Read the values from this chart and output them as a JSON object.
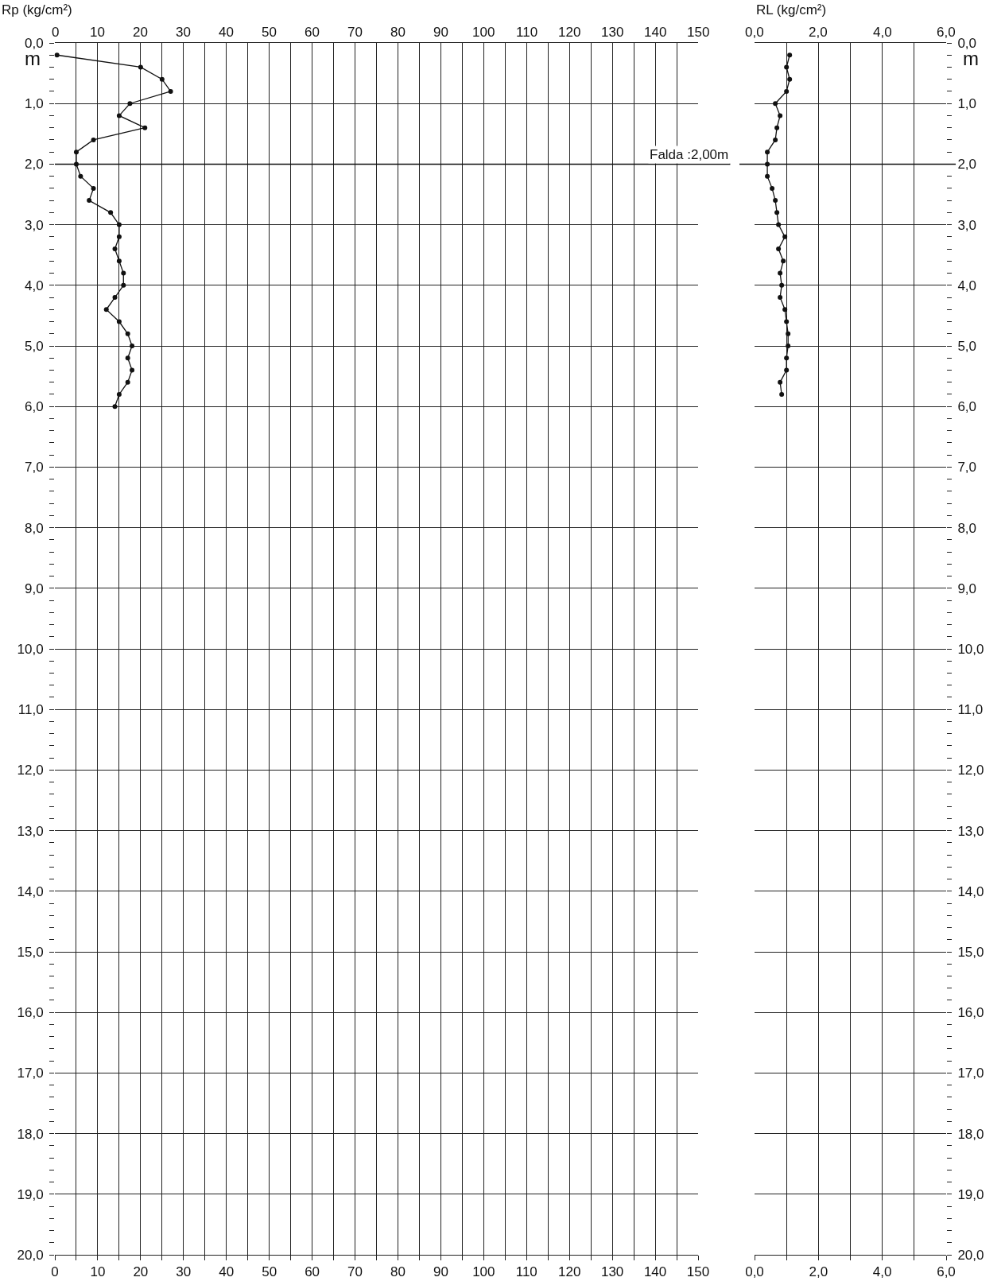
{
  "chart_data": [
    {
      "type": "line",
      "x2label": "Rp (kg/cm²)",
      "ylabel": "m",
      "marker": "circle",
      "line_style": "solid",
      "grid": true,
      "series": [
        {
          "color": "#111111",
          "x": [
            0.5,
            20,
            25,
            27,
            17.5,
            15,
            21,
            9,
            5,
            5,
            6,
            9,
            8,
            13,
            15,
            15,
            14,
            15,
            16,
            16,
            14,
            12,
            15,
            17,
            18,
            17,
            18,
            17,
            15,
            14
          ],
          "values": [
            0.2,
            0.4,
            0.6,
            0.8,
            1.0,
            1.2,
            1.4,
            1.6,
            1.8,
            2.0,
            2.2,
            2.4,
            2.6,
            2.8,
            3.0,
            3.2,
            3.4,
            3.6,
            3.8,
            4.0,
            4.2,
            4.4,
            4.6,
            4.8,
            5.0,
            5.2,
            5.4,
            5.6,
            5.8,
            6.0
          ]
        }
      ],
      "xlim": [
        0,
        150
      ],
      "x2lim": [
        0,
        150
      ],
      "xticks": [
        0,
        {
          "value": 5,
          "label": null
        },
        10,
        {
          "value": 15,
          "label": null
        },
        20,
        {
          "value": 25,
          "label": null
        },
        30,
        {
          "value": 35,
          "label": null
        },
        40,
        {
          "value": 45,
          "label": null
        },
        50,
        {
          "value": 55,
          "label": null
        },
        60,
        {
          "value": 65,
          "label": null
        },
        70,
        {
          "value": 75,
          "label": null
        },
        80,
        {
          "value": 85,
          "label": null
        },
        90,
        {
          "value": 95,
          "label": null
        },
        100,
        {
          "value": 105,
          "label": null
        },
        110,
        {
          "value": 115,
          "label": null
        },
        120,
        {
          "value": 125,
          "label": null
        },
        130,
        {
          "value": 135,
          "label": null
        },
        140,
        {
          "value": 145,
          "label": null
        },
        150
      ],
      "x2ticks": [
        0,
        10,
        20,
        30,
        40,
        50,
        60,
        70,
        80,
        90,
        100,
        110,
        120,
        130,
        140,
        150
      ],
      "ylim": [
        20,
        0
      ],
      "yticks": [
        {
          "value": 0,
          "label": "0,0"
        },
        {
          "value": 0.2,
          "label": null
        },
        {
          "value": 0.4,
          "label": null
        },
        {
          "value": 0.6,
          "label": null
        },
        {
          "value": 0.8,
          "label": null
        },
        {
          "value": 1,
          "label": "1,0"
        },
        {
          "value": 1.2,
          "label": null
        },
        {
          "value": 1.4,
          "label": null
        },
        {
          "value": 1.6,
          "label": null
        },
        {
          "value": 1.8,
          "label": null
        },
        {
          "value": 2,
          "label": "2,0"
        },
        {
          "value": 2.2,
          "label": null
        },
        {
          "value": 2.4,
          "label": null
        },
        {
          "value": 2.6,
          "label": null
        },
        {
          "value": 2.8,
          "label": null
        },
        {
          "value": 3,
          "label": "3,0"
        },
        {
          "value": 3.2,
          "label": null
        },
        {
          "value": 3.4,
          "label": null
        },
        {
          "value": 3.6,
          "label": null
        },
        {
          "value": 3.8,
          "label": null
        },
        {
          "value": 4,
          "label": "4,0"
        },
        {
          "value": 4.2,
          "label": null
        },
        {
          "value": 4.4,
          "label": null
        },
        {
          "value": 4.6,
          "label": null
        },
        {
          "value": 4.8,
          "label": null
        },
        {
          "value": 5,
          "label": "5,0"
        },
        {
          "value": 5.2,
          "label": null
        },
        {
          "value": 5.4,
          "label": null
        },
        {
          "value": 5.6,
          "label": null
        },
        {
          "value": 5.8,
          "label": null
        },
        {
          "value": 6,
          "label": "6,0"
        },
        {
          "value": 6.2,
          "label": null
        },
        {
          "value": 6.4,
          "label": null
        },
        {
          "value": 6.6,
          "label": null
        },
        {
          "value": 6.8,
          "label": null
        },
        {
          "value": 7,
          "label": "7,0"
        },
        {
          "value": 7.2,
          "label": null
        },
        {
          "value": 7.4,
          "label": null
        },
        {
          "value": 7.6,
          "label": null
        },
        {
          "value": 7.8,
          "label": null
        },
        {
          "value": 8,
          "label": "8,0"
        },
        {
          "value": 8.2,
          "label": null
        },
        {
          "value": 8.4,
          "label": null
        },
        {
          "value": 8.6,
          "label": null
        },
        {
          "value": 8.8,
          "label": null
        },
        {
          "value": 9,
          "label": "9,0"
        },
        {
          "value": 9.2,
          "label": null
        },
        {
          "value": 9.4,
          "label": null
        },
        {
          "value": 9.6,
          "label": null
        },
        {
          "value": 9.8,
          "label": null
        },
        {
          "value": 10,
          "label": "10,0"
        },
        {
          "value": 10.2,
          "label": null
        },
        {
          "value": 10.4,
          "label": null
        },
        {
          "value": 10.6,
          "label": null
        },
        {
          "value": 10.8,
          "label": null
        },
        {
          "value": 11,
          "label": "11,0"
        },
        {
          "value": 11.2,
          "label": null
        },
        {
          "value": 11.4,
          "label": null
        },
        {
          "value": 11.6,
          "label": null
        },
        {
          "value": 11.8,
          "label": null
        },
        {
          "value": 12,
          "label": "12,0"
        },
        {
          "value": 12.2,
          "label": null
        },
        {
          "value": 12.4,
          "label": null
        },
        {
          "value": 12.6,
          "label": null
        },
        {
          "value": 12.8,
          "label": null
        },
        {
          "value": 13,
          "label": "13,0"
        },
        {
          "value": 13.2,
          "label": null
        },
        {
          "value": 13.4,
          "label": null
        },
        {
          "value": 13.6,
          "label": null
        },
        {
          "value": 13.8,
          "label": null
        },
        {
          "value": 14,
          "label": "14,0"
        },
        {
          "value": 14.2,
          "label": null
        },
        {
          "value": 14.4,
          "label": null
        },
        {
          "value": 14.6,
          "label": null
        },
        {
          "value": 14.8,
          "label": null
        },
        {
          "value": 15,
          "label": "15,0"
        },
        {
          "value": 15.2,
          "label": null
        },
        {
          "value": 15.4,
          "label": null
        },
        {
          "value": 15.6,
          "label": null
        },
        {
          "value": 15.8,
          "label": null
        },
        {
          "value": 16,
          "label": "16,0"
        },
        {
          "value": 16.2,
          "label": null
        },
        {
          "value": 16.4,
          "label": null
        },
        {
          "value": 16.6,
          "label": null
        },
        {
          "value": 16.8,
          "label": null
        },
        {
          "value": 17,
          "label": "17,0"
        },
        {
          "value": 17.2,
          "label": null
        },
        {
          "value": 17.4,
          "label": null
        },
        {
          "value": 17.6,
          "label": null
        },
        {
          "value": 17.8,
          "label": null
        },
        {
          "value": 18,
          "label": "18,0"
        },
        {
          "value": 18.2,
          "label": null
        },
        {
          "value": 18.4,
          "label": null
        },
        {
          "value": 18.6,
          "label": null
        },
        {
          "value": 18.8,
          "label": null
        },
        {
          "value": 19,
          "label": "19,0"
        },
        {
          "value": 19.2,
          "label": null
        },
        {
          "value": 19.4,
          "label": null
        },
        {
          "value": 19.6,
          "label": null
        },
        {
          "value": 19.8,
          "label": null
        },
        {
          "value": 20,
          "label": "20,0"
        }
      ],
      "ref_lines": [
        {
          "axis": "y",
          "value": 2,
          "label": "Falda :2,00m"
        }
      ]
    },
    {
      "type": "line",
      "x2label": "RL (kg/cm²)",
      "ylabel": "m",
      "marker": "circle",
      "line_style": "solid",
      "grid": true,
      "series": [
        {
          "color": "#111111",
          "x": [
            1.1,
            1.0,
            1.1,
            1.0,
            0.65,
            0.8,
            0.7,
            0.65,
            0.4,
            0.4,
            0.4,
            0.55,
            0.65,
            0.7,
            0.75,
            0.95,
            0.75,
            0.9,
            0.8,
            0.85,
            0.8,
            0.95,
            1.0,
            1.05,
            1.05,
            1.0,
            1.0,
            0.8,
            0.85
          ],
          "values": [
            0.2,
            0.4,
            0.6,
            0.8,
            1.0,
            1.2,
            1.4,
            1.6,
            1.8,
            2.0,
            2.2,
            2.4,
            2.6,
            2.8,
            3.0,
            3.2,
            3.4,
            3.6,
            3.8,
            4.0,
            4.2,
            4.4,
            4.6,
            4.8,
            5.0,
            5.2,
            5.4,
            5.6,
            5.8
          ]
        }
      ],
      "xlim": [
        0,
        6
      ],
      "x2lim": [
        0,
        6
      ],
      "xticks": [
        {
          "value": 0,
          "label": "0,0"
        },
        {
          "value": 1,
          "label": null
        },
        {
          "value": 2,
          "label": "2,0"
        },
        {
          "value": 3,
          "label": null
        },
        {
          "value": 4,
          "label": "4,0"
        },
        {
          "value": 5,
          "label": null
        },
        {
          "value": 6,
          "label": "6,0"
        }
      ],
      "x2ticks": [
        {
          "value": 0,
          "label": "0,0"
        },
        {
          "value": 2,
          "label": "2,0"
        },
        {
          "value": 4,
          "label": "4,0"
        },
        {
          "value": 6,
          "label": "6,0"
        }
      ],
      "ylim": [
        20,
        0
      ],
      "yticks": [
        {
          "value": 0,
          "label": "0,0"
        },
        {
          "value": 0.2,
          "label": null
        },
        {
          "value": 0.4,
          "label": null
        },
        {
          "value": 0.6,
          "label": null
        },
        {
          "value": 0.8,
          "label": null
        },
        {
          "value": 1,
          "label": "1,0"
        },
        {
          "value": 1.2,
          "label": null
        },
        {
          "value": 1.4,
          "label": null
        },
        {
          "value": 1.6,
          "label": null
        },
        {
          "value": 1.8,
          "label": null
        },
        {
          "value": 2,
          "label": "2,0"
        },
        {
          "value": 2.2,
          "label": null
        },
        {
          "value": 2.4,
          "label": null
        },
        {
          "value": 2.6,
          "label": null
        },
        {
          "value": 2.8,
          "label": null
        },
        {
          "value": 3,
          "label": "3,0"
        },
        {
          "value": 3.2,
          "label": null
        },
        {
          "value": 3.4,
          "label": null
        },
        {
          "value": 3.6,
          "label": null
        },
        {
          "value": 3.8,
          "label": null
        },
        {
          "value": 4,
          "label": "4,0"
        },
        {
          "value": 4.2,
          "label": null
        },
        {
          "value": 4.4,
          "label": null
        },
        {
          "value": 4.6,
          "label": null
        },
        {
          "value": 4.8,
          "label": null
        },
        {
          "value": 5,
          "label": "5,0"
        },
        {
          "value": 5.2,
          "label": null
        },
        {
          "value": 5.4,
          "label": null
        },
        {
          "value": 5.6,
          "label": null
        },
        {
          "value": 5.8,
          "label": null
        },
        {
          "value": 6,
          "label": "6,0"
        },
        {
          "value": 6.2,
          "label": null
        },
        {
          "value": 6.4,
          "label": null
        },
        {
          "value": 6.6,
          "label": null
        },
        {
          "value": 6.8,
          "label": null
        },
        {
          "value": 7,
          "label": "7,0"
        },
        {
          "value": 7.2,
          "label": null
        },
        {
          "value": 7.4,
          "label": null
        },
        {
          "value": 7.6,
          "label": null
        },
        {
          "value": 7.8,
          "label": null
        },
        {
          "value": 8,
          "label": "8,0"
        },
        {
          "value": 8.2,
          "label": null
        },
        {
          "value": 8.4,
          "label": null
        },
        {
          "value": 8.6,
          "label": null
        },
        {
          "value": 8.8,
          "label": null
        },
        {
          "value": 9,
          "label": "9,0"
        },
        {
          "value": 9.2,
          "label": null
        },
        {
          "value": 9.4,
          "label": null
        },
        {
          "value": 9.6,
          "label": null
        },
        {
          "value": 9.8,
          "label": null
        },
        {
          "value": 10,
          "label": "10,0"
        },
        {
          "value": 10.2,
          "label": null
        },
        {
          "value": 10.4,
          "label": null
        },
        {
          "value": 10.6,
          "label": null
        },
        {
          "value": 10.8,
          "label": null
        },
        {
          "value": 11,
          "label": "11,0"
        },
        {
          "value": 11.2,
          "label": null
        },
        {
          "value": 11.4,
          "label": null
        },
        {
          "value": 11.6,
          "label": null
        },
        {
          "value": 11.8,
          "label": null
        },
        {
          "value": 12,
          "label": "12,0"
        },
        {
          "value": 12.2,
          "label": null
        },
        {
          "value": 12.4,
          "label": null
        },
        {
          "value": 12.6,
          "label": null
        },
        {
          "value": 12.8,
          "label": null
        },
        {
          "value": 13,
          "label": "13,0"
        },
        {
          "value": 13.2,
          "label": null
        },
        {
          "value": 13.4,
          "label": null
        },
        {
          "value": 13.6,
          "label": null
        },
        {
          "value": 13.8,
          "label": null
        },
        {
          "value": 14,
          "label": "14,0"
        },
        {
          "value": 14.2,
          "label": null
        },
        {
          "value": 14.4,
          "label": null
        },
        {
          "value": 14.6,
          "label": null
        },
        {
          "value": 14.8,
          "label": null
        },
        {
          "value": 15,
          "label": "15,0"
        },
        {
          "value": 15.2,
          "label": null
        },
        {
          "value": 15.4,
          "label": null
        },
        {
          "value": 15.6,
          "label": null
        },
        {
          "value": 15.8,
          "label": null
        },
        {
          "value": 16,
          "label": "16,0"
        },
        {
          "value": 16.2,
          "label": null
        },
        {
          "value": 16.4,
          "label": null
        },
        {
          "value": 16.6,
          "label": null
        },
        {
          "value": 16.8,
          "label": null
        },
        {
          "value": 17,
          "label": "17,0"
        },
        {
          "value": 17.2,
          "label": null
        },
        {
          "value": 17.4,
          "label": null
        },
        {
          "value": 17.6,
          "label": null
        },
        {
          "value": 17.8,
          "label": null
        },
        {
          "value": 18,
          "label": "18,0"
        },
        {
          "value": 18.2,
          "label": null
        },
        {
          "value": 18.4,
          "label": null
        },
        {
          "value": 18.6,
          "label": null
        },
        {
          "value": 18.8,
          "label": null
        },
        {
          "value": 19,
          "label": "19,0"
        },
        {
          "value": 19.2,
          "label": null
        },
        {
          "value": 19.4,
          "label": null
        },
        {
          "value": 19.6,
          "label": null
        },
        {
          "value": 19.8,
          "label": null
        },
        {
          "value": 20,
          "label": "20,0"
        }
      ],
      "ref_lines": [
        {
          "axis": "y",
          "value": 2,
          "label": null
        }
      ]
    }
  ]
}
